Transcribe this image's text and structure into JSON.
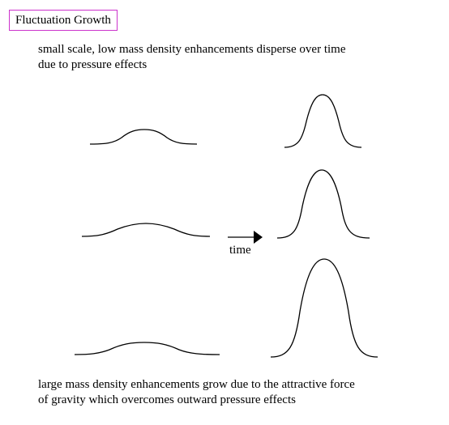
{
  "title": "Fluctuation Growth",
  "caption_top": {
    "line1": "small scale, low mass density enhancements disperse over time",
    "line2": "due to pressure effects"
  },
  "caption_bottom": {
    "line1": "large mass density enhancements grow due to the attractive force",
    "line2": "of gravity which overcomes outward pressure effects"
  },
  "arrow_label": "time"
}
